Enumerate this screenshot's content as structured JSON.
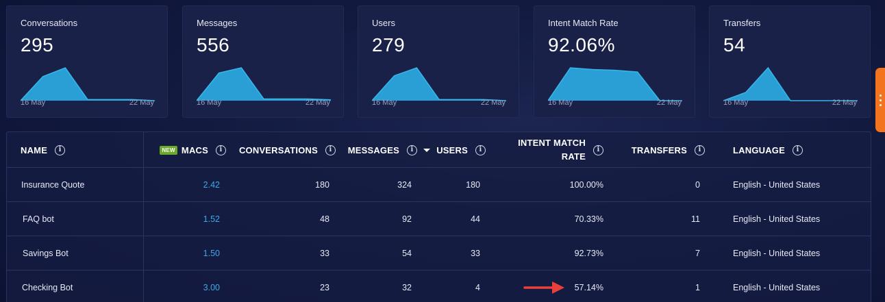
{
  "cards": [
    {
      "title": "Conversations",
      "value": "295",
      "date_start": "16 May",
      "date_end": "22 May",
      "series": [
        0,
        22,
        30,
        1,
        1,
        1,
        0
      ]
    },
    {
      "title": "Messages",
      "value": "556",
      "date_start": "16 May",
      "date_end": "22 May",
      "series": [
        0,
        32,
        38,
        2,
        2,
        2,
        1
      ]
    },
    {
      "title": "Users",
      "value": "279",
      "date_start": "16 May",
      "date_end": "22 May",
      "series": [
        0,
        22,
        29,
        1,
        1,
        1,
        0
      ]
    },
    {
      "title": "Intent Match Rate",
      "value": "92.06%",
      "date_start": "16 May",
      "date_end": "22 May",
      "series": [
        0,
        94,
        89,
        87,
        82,
        0,
        0
      ]
    },
    {
      "title": "Transfers",
      "value": "54",
      "date_start": "16 May",
      "date_end": "22 May",
      "series": [
        0,
        2,
        8,
        0,
        0,
        0,
        0
      ]
    }
  ],
  "table": {
    "headers": {
      "name": "NAME",
      "macs_badge": "NEW",
      "macs": "MACS",
      "conversations": "CONVERSATIONS",
      "messages": "MESSAGES",
      "users": "USERS",
      "intent_line1": "INTENT MATCH",
      "intent_line2": "RATE",
      "transfers": "TRANSFERS",
      "language": "LANGUAGE",
      "info_glyph": "i"
    },
    "rows": [
      {
        "name": "Insurance Quote",
        "macs": "2.42",
        "conversations": "180",
        "messages": "324",
        "users": "180",
        "intent_match_rate": "100.00%",
        "transfers": "0",
        "language": "English - United States"
      },
      {
        "name": "FAQ bot",
        "macs": "1.52",
        "conversations": "48",
        "messages": "92",
        "users": "44",
        "intent_match_rate": "70.33%",
        "transfers": "11",
        "language": "English - United States"
      },
      {
        "name": "Savings Bot",
        "macs": "1.50",
        "conversations": "33",
        "messages": "54",
        "users": "33",
        "intent_match_rate": "92.73%",
        "transfers": "7",
        "language": "English - United States"
      },
      {
        "name": "Checking Bot",
        "macs": "3.00",
        "conversations": "23",
        "messages": "32",
        "users": "4",
        "intent_match_rate": "57.14%",
        "transfers": "1",
        "language": "English - United States"
      }
    ],
    "sorted_column": "messages",
    "sort_direction": "descending"
  },
  "annotation": {
    "icon": "red-arrow-icon",
    "target": "Checking Bot intent match rate",
    "color": "#e8413a"
  },
  "colors": {
    "spark_fill": "#2a9fd6",
    "spark_line": "#38b6ea",
    "link": "#3fa9e6",
    "accent_handle": "#f3741f",
    "new_badge": "#6aa82a"
  }
}
